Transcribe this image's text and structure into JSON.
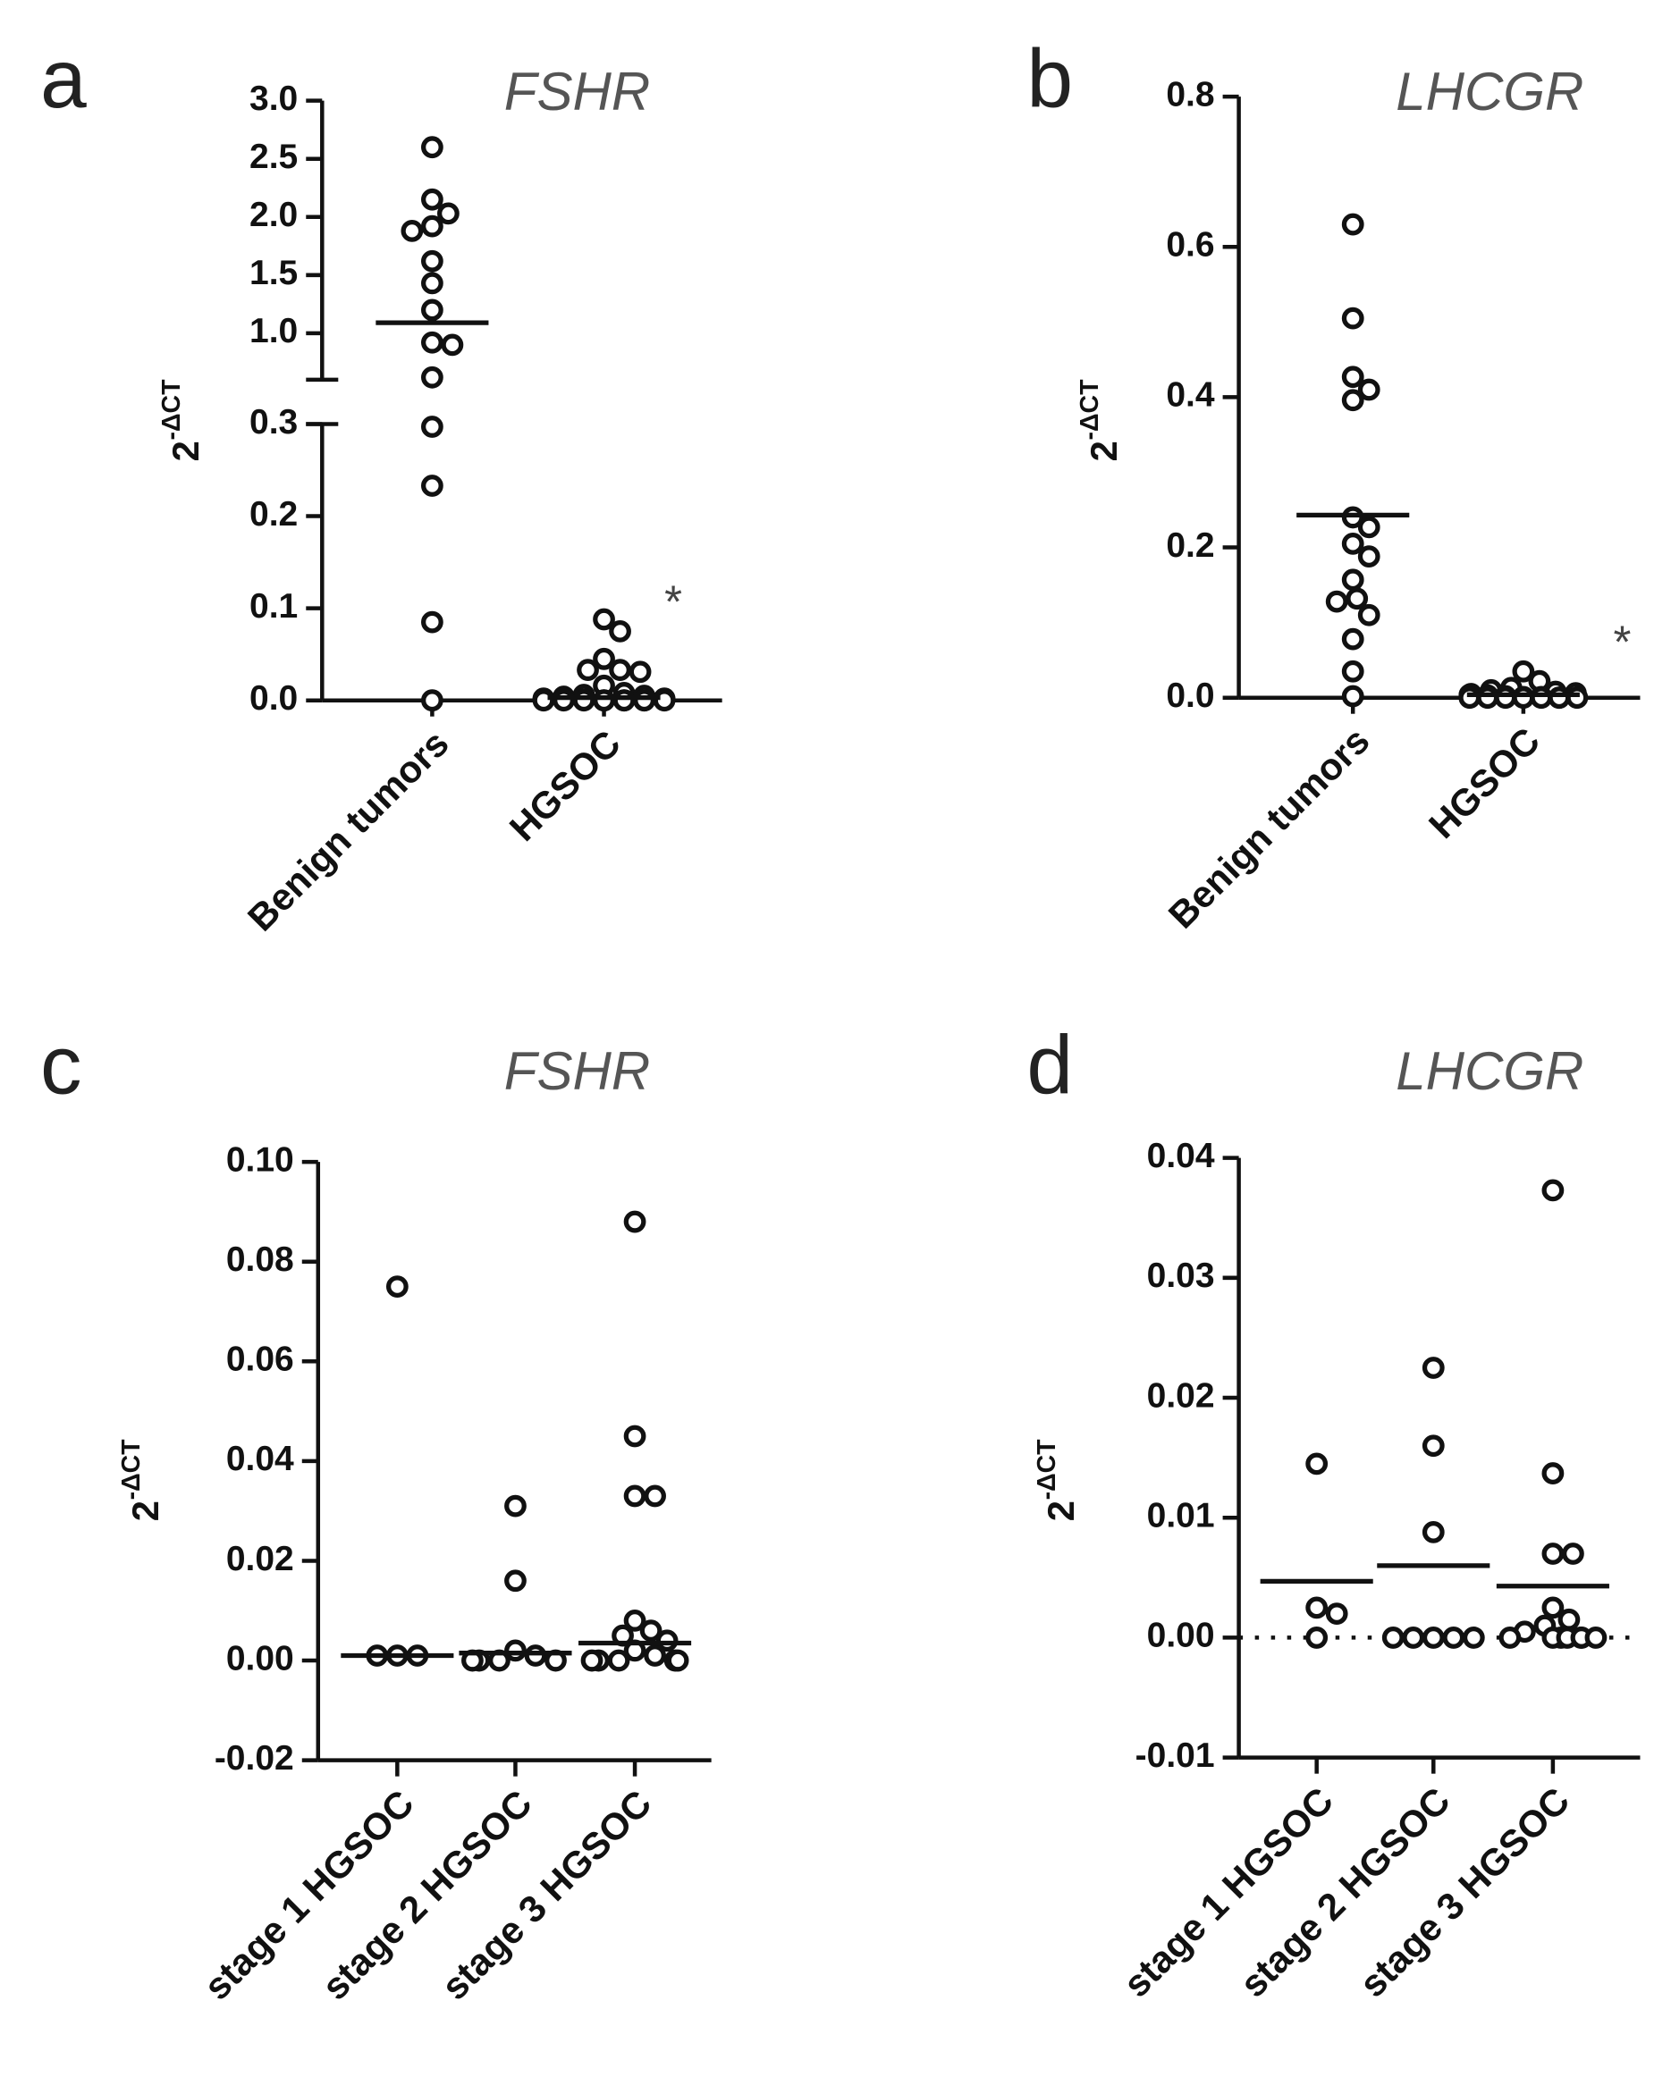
{
  "chart_data": [
    {
      "type": "strip",
      "panel": "a",
      "title": "FSHR",
      "y_label": "2",
      "y_label_sup": "-ΔCT",
      "annotation": "*",
      "categories": [
        "Benign tumors",
        "HGSOC"
      ],
      "values": [
        [
          2.6,
          2.15,
          2.03,
          1.92,
          1.88,
          1.62,
          1.43,
          1.2,
          0.92,
          0.9,
          0.62,
          0.297,
          0.233,
          0.085,
          0
        ],
        [
          0.088,
          0.075,
          0.045,
          0.033,
          0.033,
          0.031,
          0.016,
          0.008,
          0.006,
          0.005,
          0.004,
          0.002,
          0.002,
          0.001,
          0.001,
          0.001,
          0.001,
          0,
          0,
          0,
          0,
          0,
          0,
          0,
          0,
          0,
          0
        ]
      ],
      "center_lines": [
        1.09,
        0.003
      ],
      "ylim": [
        0,
        0.3
      ],
      "yticks": [
        {
          "value": 0,
          "label": "0.0"
        },
        0.1,
        0.2,
        0.3
      ],
      "ylim_upper": [
        0.6,
        3.0
      ],
      "yticks_upper": [
        {
          "value": 1,
          "label": "1.0"
        },
        1.5,
        {
          "value": 2,
          "label": "2.0"
        },
        2.5,
        {
          "value": 3,
          "label": "3.0"
        }
      ]
    },
    {
      "type": "strip",
      "panel": "b",
      "title": "LHCGR",
      "y_label": "2",
      "y_label_sup": "-ΔCT",
      "annotation": "*",
      "categories": [
        "Benign tumors",
        "HGSOC"
      ],
      "values": [
        [
          0.63,
          0.505,
          0.427,
          0.41,
          0.396,
          0.24,
          0.227,
          0.205,
          0.188,
          0.157,
          0.132,
          0.128,
          0.11,
          0.078,
          0.035,
          0.002
        ],
        [
          0.035,
          0.022,
          0.013,
          0.01,
          0.008,
          0.006,
          0.005,
          0.004,
          0.003,
          0.002,
          0.001,
          0.001,
          0,
          0,
          0,
          0,
          0,
          0,
          0,
          0
        ]
      ],
      "center_lines": [
        0.243,
        0.004
      ],
      "ylim": [
        0,
        0.8
      ],
      "yticks": [
        {
          "value": 0,
          "label": "0.0"
        },
        0.2,
        0.4,
        0.6,
        0.8
      ]
    },
    {
      "type": "strip",
      "panel": "c",
      "title": "FSHR",
      "y_label": "2",
      "y_label_sup": "-ΔCT",
      "categories": [
        "stage 1 HGSOC",
        "stage 2 HGSOC",
        "stage 3 HGSOC"
      ],
      "values": [
        [
          0.075,
          0.001,
          0.001,
          0.001
        ],
        [
          0.031,
          0.016,
          0.002,
          0.001,
          0,
          0,
          0,
          0
        ],
        [
          0.088,
          0.045,
          0.033,
          0.033,
          0.008,
          0.006,
          0.005,
          0.004,
          0.002,
          0.001,
          0,
          0,
          0,
          0,
          0
        ]
      ],
      "center_lines": [
        0.001,
        0.0015,
        0.0035
      ],
      "ylim": [
        -0.02,
        0.1
      ],
      "yticks": [
        -0.02,
        {
          "value": 0,
          "label": "0.00"
        },
        0.02,
        0.04,
        0.06,
        0.08,
        {
          "value": 0.1,
          "label": "0.10"
        }
      ]
    },
    {
      "type": "strip",
      "panel": "d",
      "title": "LHCGR",
      "y_label": "2",
      "y_label_sup": "-ΔCT",
      "zero_line": "dotted",
      "categories": [
        "stage 1 HGSOC",
        "stage 2 HGSOC",
        "stage 3 HGSOC"
      ],
      "values": [
        [
          0.0145,
          0.0025,
          0.002,
          0
        ],
        [
          0.0225,
          0.016,
          0.0088,
          0,
          0,
          0,
          0,
          0
        ],
        [
          0.0373,
          0.0137,
          0.007,
          0.007,
          0.0025,
          0.0015,
          0.001,
          0.0005,
          0,
          0,
          0,
          0,
          0,
          0,
          0
        ]
      ],
      "center_lines": [
        0.0047,
        0.006,
        0.0043
      ],
      "ylim": [
        -0.01,
        0.04
      ],
      "yticks": [
        -0.01,
        {
          "value": 0,
          "label": "0.00"
        },
        0.01,
        0.02,
        0.03,
        0.04
      ]
    }
  ]
}
